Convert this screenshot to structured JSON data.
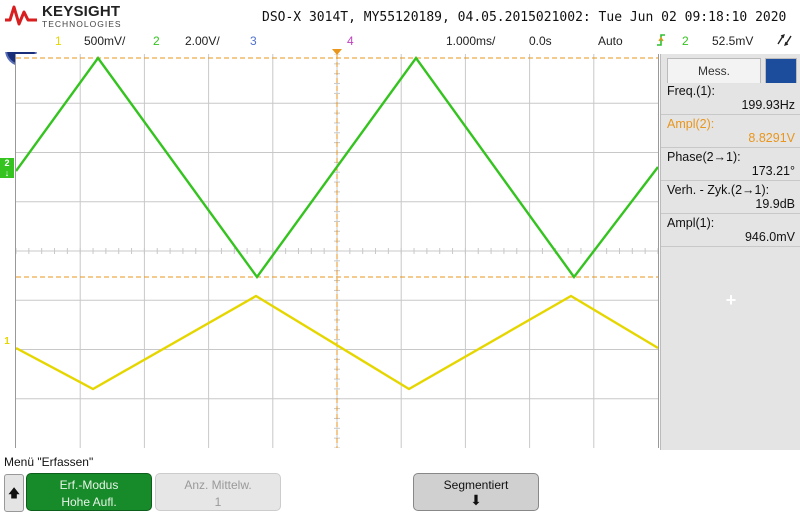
{
  "header": {
    "brand": "KEYSIGHT",
    "brand_sub": "TECHNOLOGIES",
    "title": "DSO-X 3014T, MY55120189, 04.05.2015021002: Tue Jun 02 09:18:10 2020"
  },
  "channel_bar": {
    "ch1_num": "1",
    "ch1_scale": "500mV/",
    "ch2_num": "2",
    "ch2_scale": "2.00V/",
    "ch3_num": "3",
    "ch4_num": "4",
    "timebase": "1.000ms/",
    "delay": "0.0s",
    "trigger_mode": "Auto",
    "trigger_icon": "trigger-edge-icon",
    "trigger_source": "2",
    "trigger_level": "52.5mV",
    "run_icon": "run-control-icon"
  },
  "colors": {
    "ch1": "#e6d600",
    "ch2": "#34c31f",
    "ch3": "#5070d0",
    "ch4": "#c040c0",
    "trigger": "#e8961e",
    "grid": "#c8c8c8"
  },
  "side_panel": {
    "tab_label": "Mess.",
    "measurements": [
      {
        "label": "Freq.(1):",
        "value": "199.93Hz"
      },
      {
        "label": "Ampl(2):",
        "value": "8.8291V"
      },
      {
        "label": "Phase(2→1):",
        "value": "173.21°"
      },
      {
        "label": "Verh. - Zyk.(2→1):",
        "value": "19.9dB"
      },
      {
        "label": "Ampl(1):",
        "value": "946.0mV"
      }
    ],
    "add_label": "+"
  },
  "menu": {
    "title": "Menü \"Erfassen\"",
    "softkeys": [
      {
        "line1": "Erf.-Modus",
        "line2": "Hohe Aufl."
      },
      {
        "line1": "Anz. Mittelw.",
        "line2": "1"
      },
      {
        "line1": "Segmentiert",
        "line2": "⬇"
      }
    ]
  }
}
